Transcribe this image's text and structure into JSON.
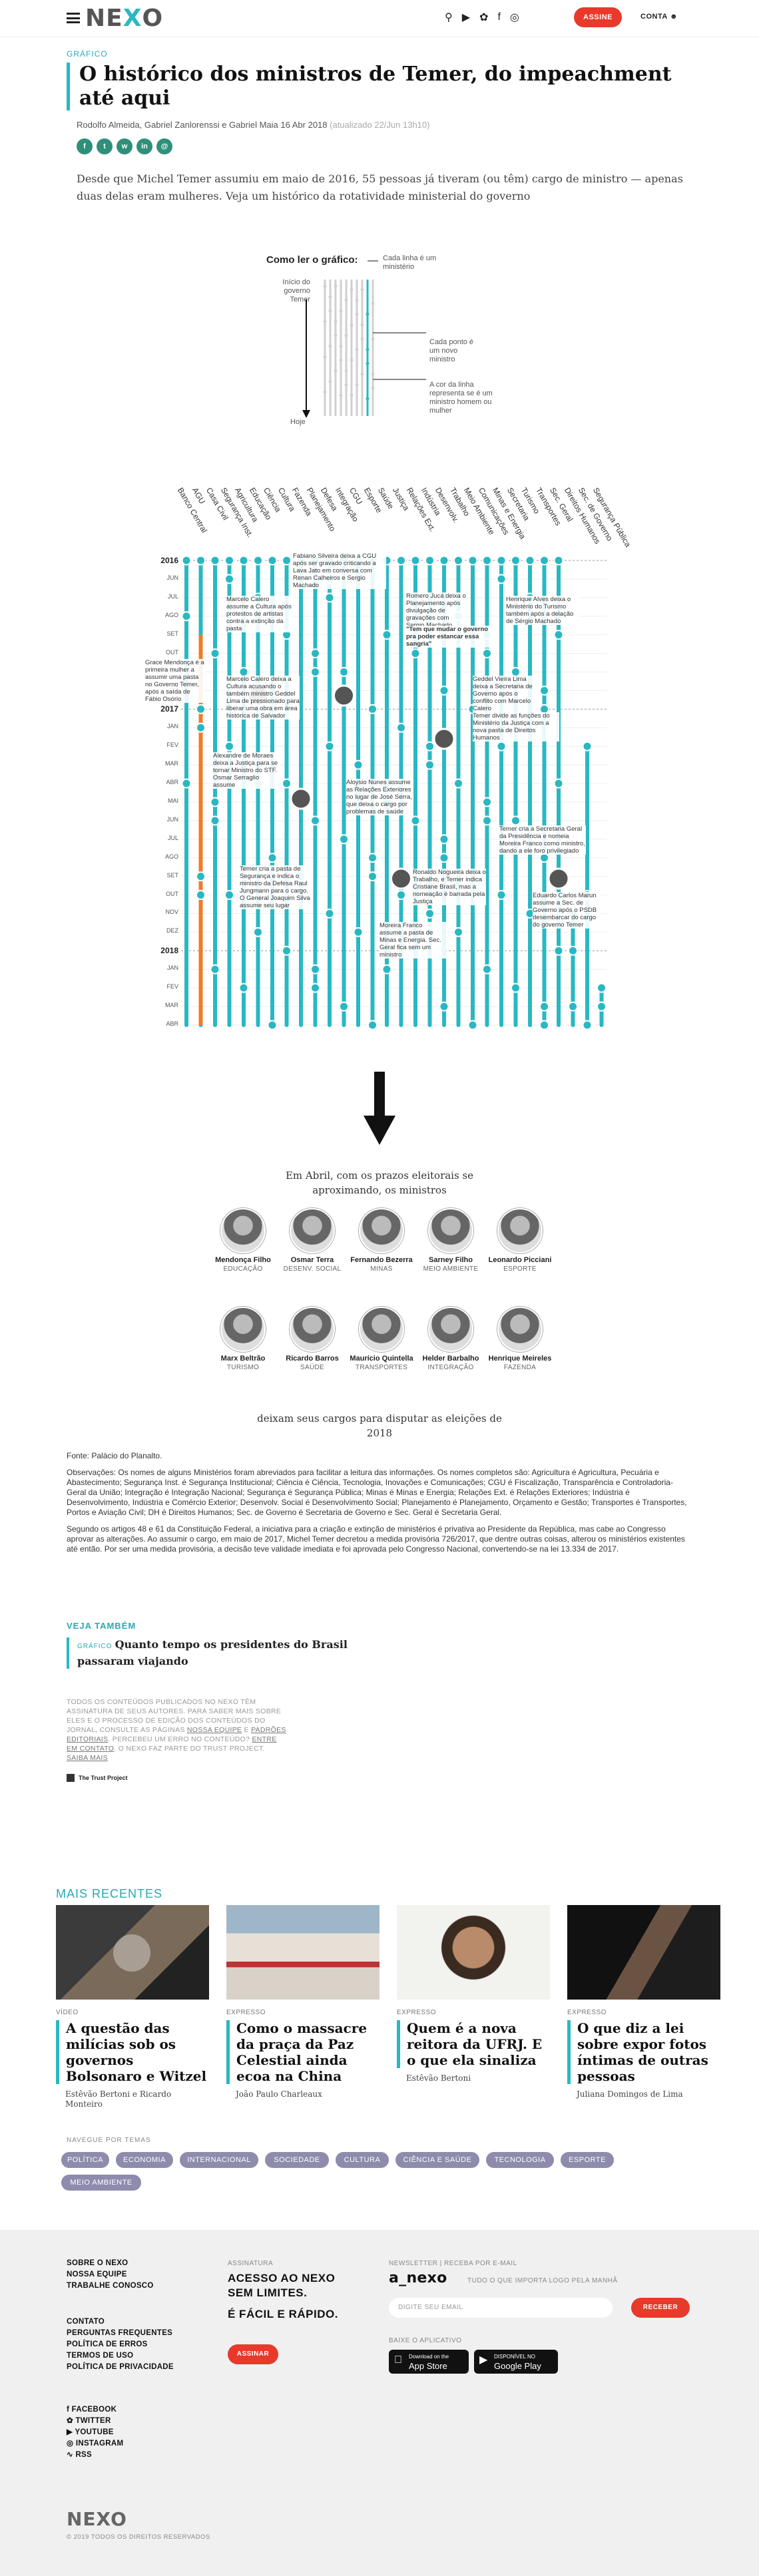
{
  "header": {
    "logo_a": "NE",
    "logo_b": "X",
    "logo_c": "O",
    "assine": "ASSINE",
    "conta": "CONTA",
    "icons": [
      "search-icon",
      "youtube-icon",
      "twitter-icon",
      "facebook-icon",
      "instagram-icon"
    ]
  },
  "article": {
    "kicker": "GRÁFICO",
    "title": "O histórico dos ministros de Temer, do impeachment até aqui",
    "authors": "Rodolfo Almeida, Gabriel Zanlorenssi e Gabriel Maia",
    "date": "16 Abr 2018",
    "updated": "(atualizado 22/Jun 13h10)",
    "share": [
      "f",
      "t",
      "w",
      "in",
      "@"
    ],
    "lead": "Desde que Michel Temer assumiu em maio de 2016, 55 pessoas já tiveram (ou têm) cargo de ministro — apenas duas delas eram mulheres. Veja um histórico da rotatividade ministerial do governo"
  },
  "howto": {
    "title": "Como ler o gráfico:",
    "inicio": "Início do governo Temer",
    "hoje": "Hoje",
    "linha": "Cada linha é um ministério",
    "ponto": "Cada ponto é um novo ministro",
    "cor": "A cor da linha representa se é um ministro homem ou mulher"
  },
  "chart_data": {
    "type": "other",
    "columns": [
      "Banco Central",
      "AGU",
      "Casa Civil",
      "Segurança Inst.",
      "Agricultura",
      "Educação",
      "Ciência",
      "Cultura",
      "Fazenda",
      "Planejamento",
      "Defesa",
      "Integração",
      "CGU",
      "Esporte",
      "Saúde",
      "Justiça",
      "Relações Ext.",
      "Indústria",
      "Desenvolv.",
      "Trabalho",
      "Meio Ambiente",
      "Comunicações",
      "Minas e Energia",
      "Secretaria",
      "Turismo",
      "Transportes",
      "Sec. Geral",
      "Direitos Humanos",
      "Sec. de Governo",
      "Segurança Pública"
    ],
    "rows": [
      "2016",
      "JUN",
      "JUL",
      "AGO",
      "SET",
      "OUT",
      "NOV",
      "DEZ",
      "2017",
      "JAN",
      "FEV",
      "MAR",
      "ABR",
      "MAI",
      "JUN",
      "JUL",
      "AGO",
      "SET",
      "OUT",
      "NOV",
      "DEZ",
      "2018",
      "JAN",
      "FEV",
      "MAR",
      "ABR"
    ],
    "annotations": [
      "Fabiano Silveira deixa a CGU após ser gravado criticando a Lava Jato em conversa com Renan Calheiros e Sergio Machado",
      "Marcelo Calero assume a Cultura após protestos de artistas contra a extinção da pasta",
      "Romero Jucá deixa o Planejamento após divulgação de gravações com Sergio Machado",
      "\"Tem que mudar o governo pra poder estancar essa sangria\"",
      "Henrique Alves deixa o Ministério do Turismo também após a delação de Sérgio Machado",
      "Grace Mendonça é a primeira mulher a assumir uma pasta no Governo Temer, após a saída de Fábio Osório",
      "Marcelo Calero deixa a Cultura acusando o também ministro Geddel Lima de pressionado para liberar uma obra em área histórica de Salvador",
      "Geddel Vieira Lima deixa a Secretaria de Governo após o conflito com Marcelo Calero",
      "Temer divide as funções do Ministério da Justiça com a nova pasta de Direitos Humanos",
      "Alexandre de Moraes deixa a Justiça para se tornar Ministro do STF. Osmar Serraglio assume",
      "Aloysio Nunes assume as Relações Exteriores no lugar de José Serra, que deixa o cargo por problemas de saúde",
      "Temer cria a Secretaria Geral da Presidência e nomeia Moreira Franco como ministro, dando a ele foro privilegiado",
      "Temer cria a pasta de Segurança e indica o ministro da Defesa Raul Jungmann para o cargo. O General Joaquim Silva assume seu lugar",
      "Ronaldo Nogueira deixa o Trabalho, e Temer indica Cristiane Brasil, mas a nomeação é barrada pela Justiça",
      "Moreira Franco assume a pasta de Minas e Energia. Sec. Geral fica sem um ministro",
      "Eduardo Carlos Marun assume a Sec. de Governo após o PSDB desembarcar do cargo do governo Temer"
    ]
  },
  "departure": {
    "intro": "Em Abril, com os prazos eleitorais se aproximando, os ministros",
    "outro": "deixam seus cargos para disputar as eleições de 2018",
    "people": [
      {
        "name": "Mendonça Filho",
        "role": "EDUCAÇÃO"
      },
      {
        "name": "Osmar Terra",
        "role": "DESENV. SOCIAL"
      },
      {
        "name": "Fernando Bezerra",
        "role": "MINAS"
      },
      {
        "name": "Sarney Filho",
        "role": "MEIO AMBIENTE"
      },
      {
        "name": "Leonardo Picciani",
        "role": "ESPORTE"
      },
      {
        "name": "Marx Beltrão",
        "role": "TURISMO"
      },
      {
        "name": "Ricardo Barros",
        "role": "SAÚDE"
      },
      {
        "name": "Maurício Quintella",
        "role": "TRANSPORTES"
      },
      {
        "name": "Helder Barbalho",
        "role": "INTEGRAÇÃO"
      },
      {
        "name": "Henrique Meireles",
        "role": "FAZENDA"
      }
    ]
  },
  "notes": {
    "fonte": "Fonte: Palácio do Planalto.",
    "obs": "Observações: Os nomes de alguns Ministérios foram abreviados para facilitar a leitura das informações. Os nomes completos são: Agricultura é Agricultura, Pecuária e Abastecimento; Segurança Inst. é Segurança Institucional; Ciência é Ciência, Tecnologia, Inovações e Comunicações; CGU é Fiscalização, Transparência e Controladoria-Geral da União; Integração é Integração Nacional; Segurança é Segurança Pública; Minas é Minas e Energia; Relações Ext. é Relações Exteriores; Indústria é Desenvolvimento, Indústria e Comércio Exterior; Desenvolv. Social é Desenvolvimento Social; Planejamento é Planejamento, Orçamento e Gestão; Transportes é Transportes, Portos e Aviação Civil; DH é Direitos Humanos; Sec. de Governo é Secretaria de Governo e Sec. Geral é Secretaria Geral.",
    "const": "Segundo os artigos 48 e 61 da Constituição Federal, a iniciativa para a criação e extinção de ministérios é privativa ao Presidente da República, mas cabe ao Congresso aprovar as alterações. Ao assumir o cargo, em maio de 2017, Michel Temer decretou a medida provisória 726/2017, que dentre outras coisas, alterou os ministérios existentes até então. Por ser uma medida provisória, a decisão teve validade imediata e foi aprovada pelo Congresso Nacional, convertendo-se na lei 13.334 de 2017."
  },
  "veja": {
    "heading": "VEJA TAMBÉM",
    "tag": "GRÁFICO",
    "title": "Quanto tempo os presidentes do Brasil passaram viajando"
  },
  "policy": {
    "text": "TODOS OS CONTEÚDOS PUBLICADOS NO NEXO TÊM ASSINATURA DE SEUS AUTORES. PARA SABER MAIS SOBRE ELES E O PROCESSO DE EDIÇÃO DOS CONTEÚDOS DO JORNAL, CONSULTE AS PÁGINAS",
    "link1": "NOSSA EQUIPE",
    "and": " E ",
    "link2": "PADRÕES EDITORIAIS",
    "text2": ". PERCEBEU UM ERRO NO CONTEÚDO? ",
    "link3": "ENTRE EM CONTATO",
    "text3": ". O NEXO FAZ PARTE DO TRUST PROJECT. ",
    "link4": "SAIBA MAIS",
    "trust": "The Trust Project"
  },
  "recentes": {
    "heading": "MAIS RECENTES",
    "items": [
      {
        "tag": "VÍDEO",
        "title": "A questão das milícias sob os governos Bolsonaro e Witzel",
        "author": "Estêvão Bertoni e Ricardo Monteiro"
      },
      {
        "tag": "EXPRESSO",
        "title": "Como o massacre da praça da Paz Celestial ainda ecoa na China",
        "author": "João Paulo Charleaux"
      },
      {
        "tag": "EXPRESSO",
        "title": "Quem é a nova reitora da UFRJ. E o que ela sinaliza",
        "author": "Estêvão Bertoni"
      },
      {
        "tag": "EXPRESSO",
        "title": "O que diz a lei sobre expor fotos íntimas de outras pessoas",
        "author": "Juliana Domingos de Lima"
      }
    ]
  },
  "temas": {
    "heading": "NAVEGUE POR TEMAS",
    "items": [
      "POLÍTICA",
      "ECONOMIA",
      "INTERNACIONAL",
      "SOCIEDADE",
      "CULTURA",
      "CIÊNCIA E SAÚDE",
      "TECNOLOGIA",
      "ESPORTE",
      "MEIO AMBIENTE"
    ]
  },
  "footer": {
    "links1": [
      "SOBRE O NEXO",
      "NOSSA EQUIPE",
      "TRABALHE CONOSCO"
    ],
    "links2": [
      "CONTATO",
      "PERGUNTAS FREQUENTES",
      "POLÍTICA DE ERROS",
      "TERMOS DE USO",
      "POLÍTICA DE PRIVACIDADE"
    ],
    "social": [
      "FACEBOOK",
      "TWITTER",
      "YOUTUBE",
      "INSTAGRAM",
      "RSS"
    ],
    "assinatura_label": "ASSINATURA",
    "assinatura_l1": "ACESSO AO NEXO",
    "assinatura_l2": "SEM LIMITES.",
    "assinatura_l3": "É FÁCIL E RÁPIDO.",
    "assinar": "ASSINAR",
    "newsletter_label": "NEWSLETTER | RECEBA POR E-MAIL",
    "newsletter_brand": "a_nexo",
    "newsletter_tag": "TUDO O QUE IMPORTA LOGO PELA MANHÃ",
    "email_placeholder": "DIGITE SEU EMAIL",
    "receber": "RECEBER",
    "app_label": "BAIXE O APLICATIVO",
    "appstore_small": "Download on the",
    "appstore": "App Store",
    "gplay_small": "DISPONÍVEL NO",
    "gplay": "Google Play",
    "logo": "NEXO",
    "copyright": "© 2019 TODOS OS DIREITOS RESERVADOS"
  },
  "colors": {
    "accent": "#29b8c2",
    "red": "#e8392b",
    "woman": "#f07b2a",
    "pill": "#8e8bad"
  }
}
